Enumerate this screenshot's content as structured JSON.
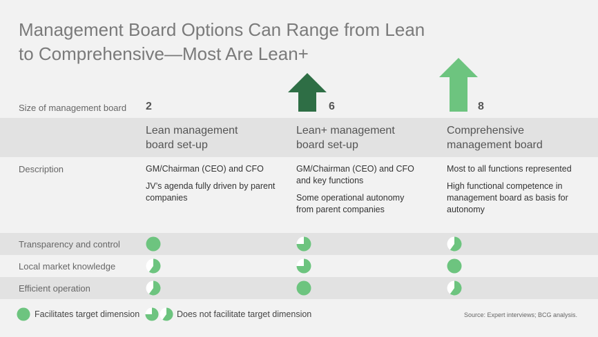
{
  "title_line1": "Management Board Options Can Range from Lean",
  "title_line2": "to Comprehensive—Most Are Lean+",
  "size_label": "Size of management board",
  "columns": [
    {
      "size": "2",
      "heading_line1": "Lean management",
      "heading_line2": "board set-up",
      "desc1": "GM/Chairman (CEO) and CFO",
      "desc2": "JV’s agenda fully driven by parent companies"
    },
    {
      "size": "6",
      "heading_line1": "Lean+ management",
      "heading_line2": "board set-up",
      "desc1": "GM/Chairman (CEO) and CFO and key functions",
      "desc2": "Some operational autonomy from parent companies"
    },
    {
      "size": "8",
      "heading_line1": "Comprehensive",
      "heading_line2": "management board",
      "desc1": "Most to all functions represented",
      "desc2": "High functional competence in management board as basis for autonomy"
    }
  ],
  "description_label": "Description",
  "criteria": [
    {
      "label": "Transparency and control",
      "ratings": [
        1.0,
        0.75,
        0.6
      ]
    },
    {
      "label": "Local market knowledge",
      "ratings": [
        0.6,
        0.75,
        1.0
      ]
    },
    {
      "label": "Efficient operation",
      "ratings": [
        0.6,
        1.0,
        0.6
      ]
    }
  ],
  "legend": {
    "facilitates": "Facilitates target dimension",
    "not_facilitates": "Does not facilitate target dimension"
  },
  "source": "Source: Expert interviews; BCG analysis.",
  "colors": {
    "green": "#6dc47f",
    "dark_green": "#2e6e45",
    "light_green": "#6dc47f",
    "band": "#e2e2e2"
  }
}
